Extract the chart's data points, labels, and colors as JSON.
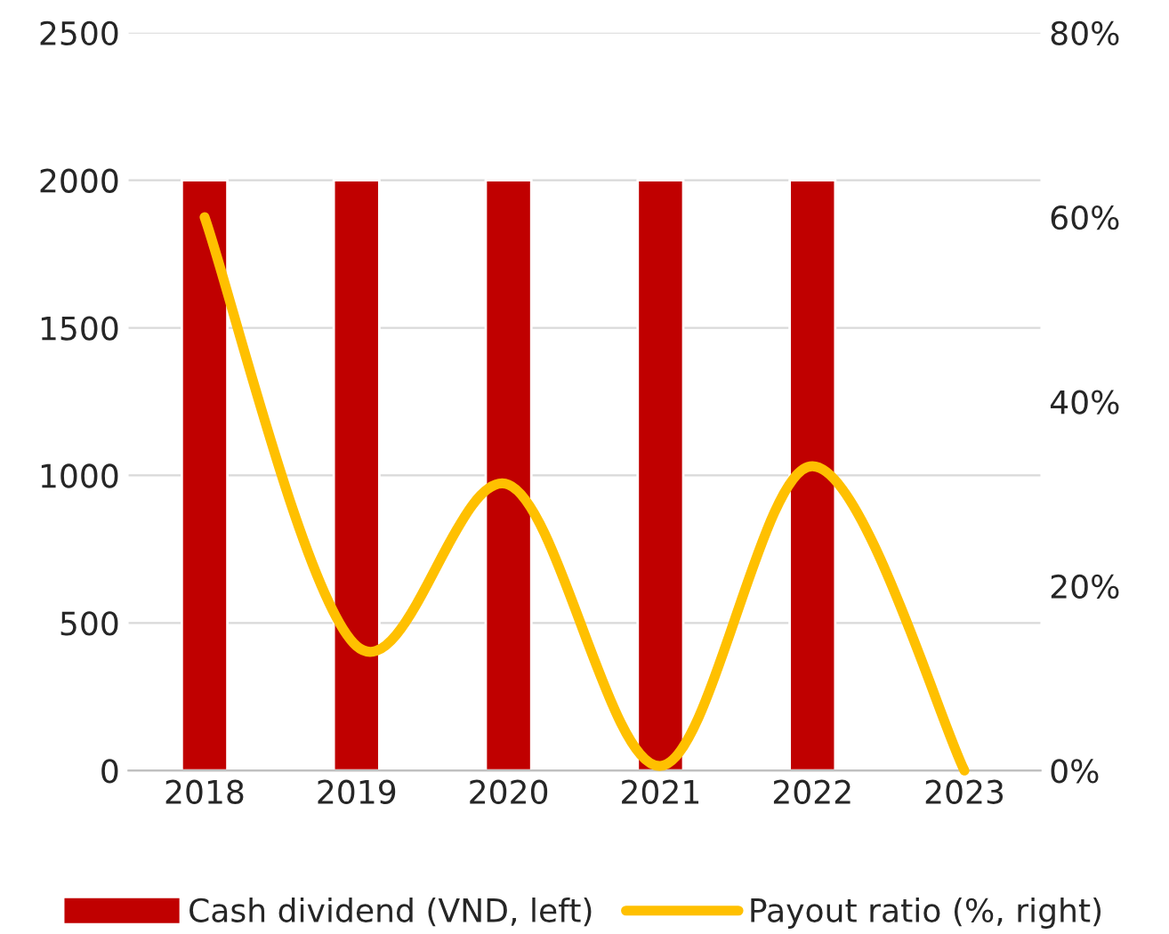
{
  "chart_data": {
    "type": "bar",
    "categories": [
      "2018",
      "2019",
      "2020",
      "2021",
      "2022",
      "2023"
    ],
    "series": [
      {
        "name": "Cash dividend (VND, left)",
        "color": "#c00000",
        "values": [
          2000,
          2000,
          2000,
          2000,
          2000,
          null
        ]
      },
      {
        "name": "Payout ratio (%, right)",
        "type": "line",
        "axis": "y2",
        "color": "#ffc000",
        "values": [
          60,
          13.5,
          31,
          0.5,
          33,
          0
        ]
      }
    ],
    "ylim": [
      0,
      2500
    ],
    "yticks": [
      0,
      500,
      1000,
      1500,
      2000,
      2500
    ],
    "y2lim": [
      0,
      80
    ],
    "y2ticks": [
      {
        "value": 0,
        "label": "0%"
      },
      {
        "value": 20,
        "label": "20%"
      },
      {
        "value": 40,
        "label": "40%"
      },
      {
        "value": 60,
        "label": "60%"
      },
      {
        "value": 80,
        "label": "80%"
      }
    ],
    "grid": "y",
    "legend": "bottom",
    "line_style": "solid",
    "marker": "none"
  }
}
